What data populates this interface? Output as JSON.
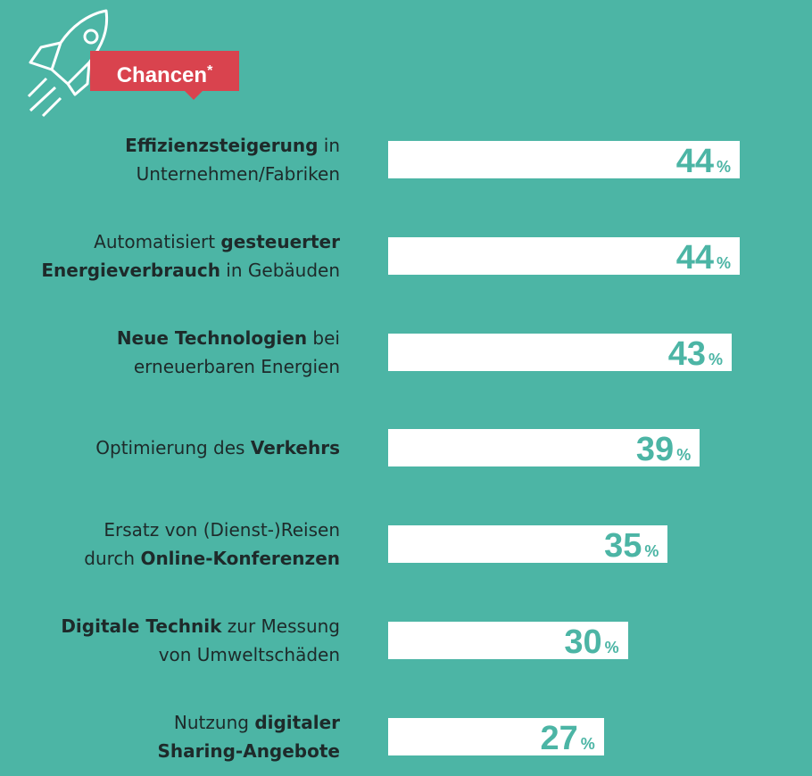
{
  "badge": {
    "label": "Chancen",
    "mark": "*"
  },
  "colors": {
    "background": "#4cb5a5",
    "bar": "#ffffff",
    "badge": "#d9434e",
    "text": "#1e2a2a"
  },
  "chart_data": {
    "type": "bar",
    "orientation": "horizontal",
    "title": "Chancen*",
    "unit": "%",
    "xlim": [
      0,
      44
    ],
    "categories": [
      [
        [
          [
            "Effizienzsteigerung",
            true
          ],
          [
            " in",
            false
          ]
        ],
        [
          [
            "Unternehmen/Fabriken",
            false
          ]
        ]
      ],
      [
        [
          [
            "Automatisiert ",
            false
          ],
          [
            "gesteuerter",
            true
          ]
        ],
        [
          [
            "Energieverbrauch",
            true
          ],
          [
            " in Gebäuden",
            false
          ]
        ]
      ],
      [
        [
          [
            "Neue Technologien",
            true
          ],
          [
            " bei",
            false
          ]
        ],
        [
          [
            "erneuerbaren Energien",
            false
          ]
        ]
      ],
      [
        [
          [
            "Optimierung des ",
            false
          ],
          [
            "Verkehrs",
            true
          ]
        ]
      ],
      [
        [
          [
            "Ersatz von (Dienst-)Reisen",
            false
          ]
        ],
        [
          [
            "durch ",
            false
          ],
          [
            "Online-Konferenzen",
            true
          ]
        ]
      ],
      [
        [
          [
            "Digitale Technik",
            true
          ],
          [
            " zur Messung",
            false
          ]
        ],
        [
          [
            "von Umweltschäden",
            false
          ]
        ]
      ],
      [
        [
          [
            "Nutzung ",
            false
          ],
          [
            "digitaler",
            true
          ]
        ],
        [
          [
            "Sharing-Angebote",
            true
          ]
        ]
      ]
    ],
    "values": [
      44,
      44,
      43,
      39,
      35,
      30,
      27
    ]
  }
}
